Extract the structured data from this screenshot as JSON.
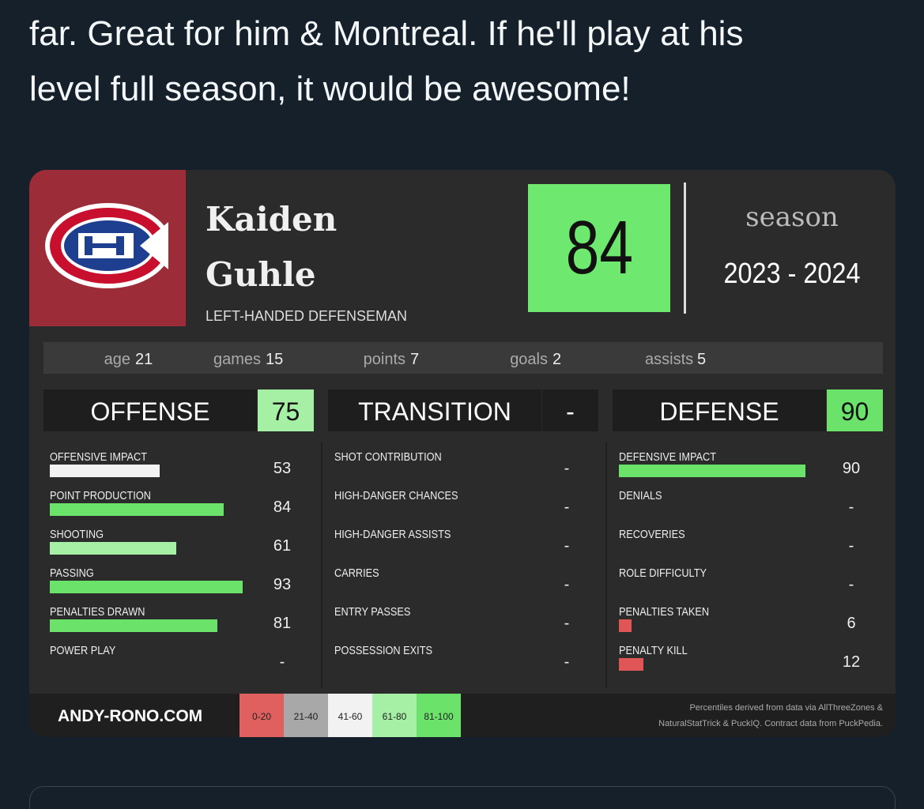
{
  "tweet": {
    "lines": [
      "far. Great for him & Montreal. If he'll play at his",
      "level full season, it would be awesome!"
    ]
  },
  "card": {
    "player": {
      "first_name": "Kaiden",
      "last_name": "Guhle",
      "position": "LEFT-HANDED DEFENSEMAN"
    },
    "overall": {
      "value": 84,
      "color": "#6ee86e"
    },
    "season": {
      "label": "season",
      "value": "2023 - 2024"
    },
    "stats": [
      {
        "label": "age",
        "value": 21
      },
      {
        "label": "games",
        "value": 15
      },
      {
        "label": "points",
        "value": 7
      },
      {
        "label": "goals",
        "value": 2
      },
      {
        "label": "assists",
        "value": 5
      }
    ],
    "sections": [
      {
        "title": "OFFENSE",
        "score": 75,
        "score_color": "#a6f0a6",
        "metrics": [
          {
            "name": "OFFENSIVE IMPACT",
            "value": 53,
            "color": "#f2f2f2"
          },
          {
            "name": "POINT PRODUCTION",
            "value": 84,
            "color": "#6be36b"
          },
          {
            "name": "SHOOTING",
            "value": 61,
            "color": "#a6f0a6"
          },
          {
            "name": "PASSING",
            "value": 93,
            "color": "#6be36b"
          },
          {
            "name": "PENALTIES DRAWN",
            "value": 81,
            "color": "#6be36b"
          },
          {
            "name": "POWER PLAY",
            "value": "-"
          }
        ]
      },
      {
        "title": "TRANSITION",
        "score": "-",
        "metrics": [
          {
            "name": "SHOT CONTRIBUTION",
            "value": "-"
          },
          {
            "name": "HIGH-DANGER CHANCES",
            "value": "-"
          },
          {
            "name": "HIGH-DANGER ASSISTS",
            "value": "-"
          },
          {
            "name": "CARRIES",
            "value": "-"
          },
          {
            "name": "ENTRY PASSES",
            "value": "-"
          },
          {
            "name": "POSSESSION EXITS",
            "value": "-"
          }
        ]
      },
      {
        "title": "DEFENSE",
        "score": 90,
        "score_color": "#6be36b",
        "metrics": [
          {
            "name": "DEFENSIVE IMPACT",
            "value": 90,
            "color": "#6be36b"
          },
          {
            "name": "DENIALS",
            "value": "-"
          },
          {
            "name": "RECOVERIES",
            "value": "-"
          },
          {
            "name": "ROLE DIFFICULTY",
            "value": "-"
          },
          {
            "name": "PENALTIES TAKEN",
            "value": 6,
            "color": "#e05555"
          },
          {
            "name": "PENALTY KILL",
            "value": 12,
            "color": "#e05555"
          }
        ]
      }
    ],
    "footer": {
      "site": "ANDY-RONO.COM",
      "legend": [
        {
          "label": "0-20",
          "color": "#e06060"
        },
        {
          "label": "21-40",
          "color": "#a8a8a8"
        },
        {
          "label": "41-60",
          "color": "#f2f2f2"
        },
        {
          "label": "61-80",
          "color": "#a6f0a6"
        },
        {
          "label": "81-100",
          "color": "#6be36b"
        }
      ],
      "credits": [
        "Percentiles derived from data via AllThreeZones &",
        "NaturalStatTrick & PuckIQ. Contract data from PuckPedia."
      ]
    }
  }
}
